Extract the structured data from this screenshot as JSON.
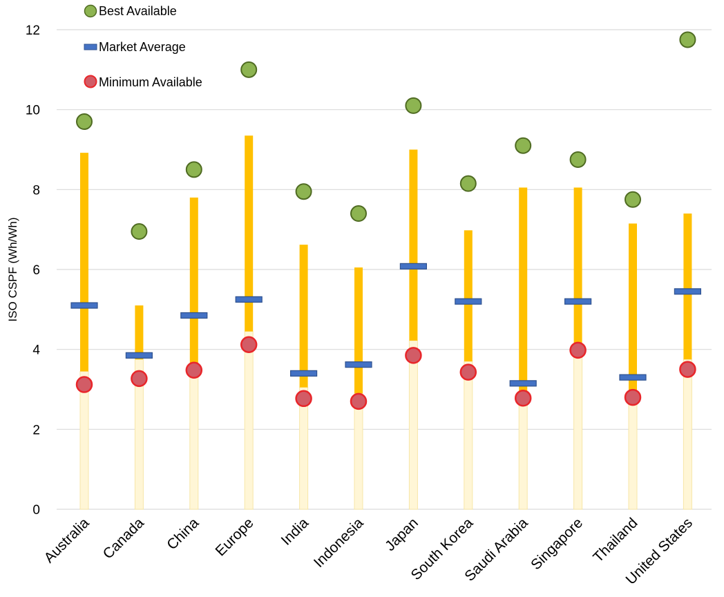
{
  "chart_data": {
    "type": "range",
    "ylabel": "ISO CSPF (Wh/Wh)",
    "xlabel": "",
    "ylim": [
      0,
      12
    ],
    "yticks": [
      0,
      2,
      4,
      6,
      8,
      10,
      12
    ],
    "grid": true,
    "legend_position": "top-left",
    "categories": [
      "Australia",
      "Canada",
      "China",
      "Europe",
      "India",
      "Indonesia",
      "Japan",
      "South Korea",
      "Saudi Arabia",
      "Singapore",
      "Thailand",
      "United States"
    ],
    "series": [
      {
        "name": "Best Available",
        "marker": "circle",
        "color": "#8DB451",
        "values": [
          9.7,
          6.95,
          8.5,
          11.0,
          7.95,
          7.4,
          10.1,
          8.15,
          9.1,
          8.75,
          7.75,
          11.75
        ]
      },
      {
        "name": "Market Average",
        "marker": "dash",
        "color": "#4472C4",
        "values": [
          5.1,
          3.85,
          4.85,
          5.25,
          3.4,
          3.62,
          6.08,
          5.2,
          3.15,
          5.2,
          3.3,
          5.45
        ]
      },
      {
        "name": "Minimum Available",
        "marker": "circle",
        "color": "#E8262A",
        "values": [
          3.12,
          3.27,
          3.48,
          4.12,
          2.77,
          2.7,
          3.85,
          3.43,
          2.78,
          3.98,
          2.8,
          3.5
        ]
      }
    ],
    "ranges": {
      "color": "#FFC000",
      "low": [
        3.45,
        3.75,
        3.55,
        4.45,
        3.05,
        2.9,
        4.22,
        3.7,
        2.9,
        4.1,
        2.8,
        3.75
      ],
      "high": [
        8.92,
        5.1,
        7.8,
        9.35,
        6.62,
        6.05,
        9.0,
        6.98,
        8.05,
        8.05,
        7.15,
        7.4
      ]
    }
  }
}
